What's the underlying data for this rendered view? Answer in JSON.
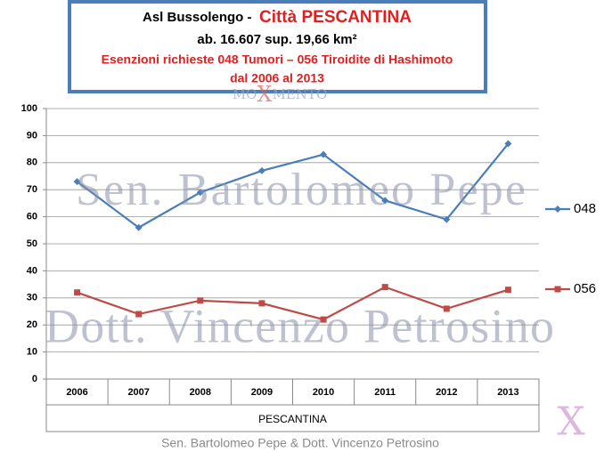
{
  "chart_data": {
    "type": "line",
    "title": "Asl Bussolengo -",
    "title_highlight": "Città PESCANTINA",
    "subtitle": "ab. 16.607 sup. 19,66 km²",
    "annotations": [
      "Esenzioni richieste 048 Tumori – 056 Tiroidite di Hashimoto",
      "dal 2006 al 2013"
    ],
    "xlabel": "PESCANTINA",
    "categories": [
      "2006",
      "2007",
      "2008",
      "2009",
      "2010",
      "2011",
      "2012",
      "2013"
    ],
    "series": [
      {
        "name": "048",
        "color": "#4a7ebb",
        "marker": "diamond",
        "values": [
          73,
          56,
          69,
          77,
          83,
          66,
          59,
          87
        ]
      },
      {
        "name": "056",
        "color": "#be4b48",
        "marker": "square",
        "values": [
          32,
          24,
          29,
          28,
          22,
          34,
          26,
          33
        ]
      }
    ],
    "ylim": [
      0,
      100
    ],
    "yticks": [
      0,
      10,
      20,
      30,
      40,
      50,
      60,
      70,
      80,
      90,
      100
    ],
    "grid": true,
    "legend": "right",
    "watermarks": [
      "Sen. Bartolomeo Pepe",
      "Dott. Vincenzo Petrosino",
      "Sen. Bartolomeo Pepe & Dott. Vincenzo Petrosino"
    ],
    "logo": {
      "left": "MO",
      "mark": "X",
      "right": "MENTO"
    }
  }
}
